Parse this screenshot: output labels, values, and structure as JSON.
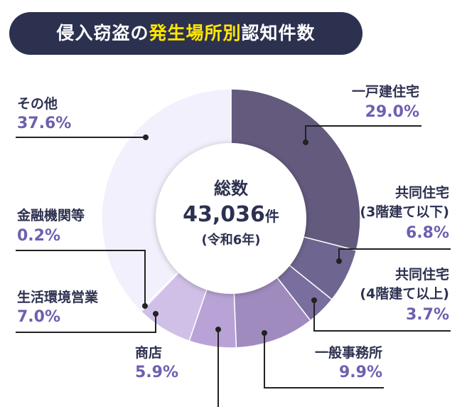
{
  "title": {
    "prefix": "侵入窃盗の",
    "highlight": "発生場所別",
    "suffix": "認知件数"
  },
  "center": {
    "label": "総数",
    "value": "43,036",
    "unit": "件",
    "period": "(令和6年)"
  },
  "colors": {
    "title_bg": "#2d3150",
    "highlight": "#ffe600",
    "percent": "#6f5fb0",
    "text": "#2d3150"
  },
  "chart_data": {
    "type": "pie",
    "donut": true,
    "start": "top, clockwise",
    "slices": [
      {
        "label": "一戸建住宅",
        "value": 29.0,
        "display": "29.0%",
        "color": "#635a7e"
      },
      {
        "label": "共同住宅(3階建て以下)",
        "line1": "共同住宅",
        "line2": "(3階建て以下)",
        "value": 6.8,
        "display": "6.8%",
        "color": "#6e6690"
      },
      {
        "label": "共同住宅(4階建て以上)",
        "line1": "共同住宅",
        "line2": "(4階建て以上)",
        "value": 3.7,
        "display": "3.7%",
        "color": "#7a6e9e"
      },
      {
        "label": "一般事務所",
        "value": 9.9,
        "display": "9.9%",
        "color": "#a08bbf"
      },
      {
        "label": "商店",
        "value": 5.9,
        "display": "5.9%",
        "color": "#b9a3d6"
      },
      {
        "label": "生活環境営業",
        "value": 7.0,
        "display": "7.0%",
        "color": "#d0c0e8"
      },
      {
        "label": "金融機関等",
        "value": 0.2,
        "display": "0.2%",
        "color": "#e0d8f2"
      },
      {
        "label": "その他",
        "value": 37.6,
        "display": "37.6%",
        "color": "#f2f0fc"
      }
    ]
  }
}
